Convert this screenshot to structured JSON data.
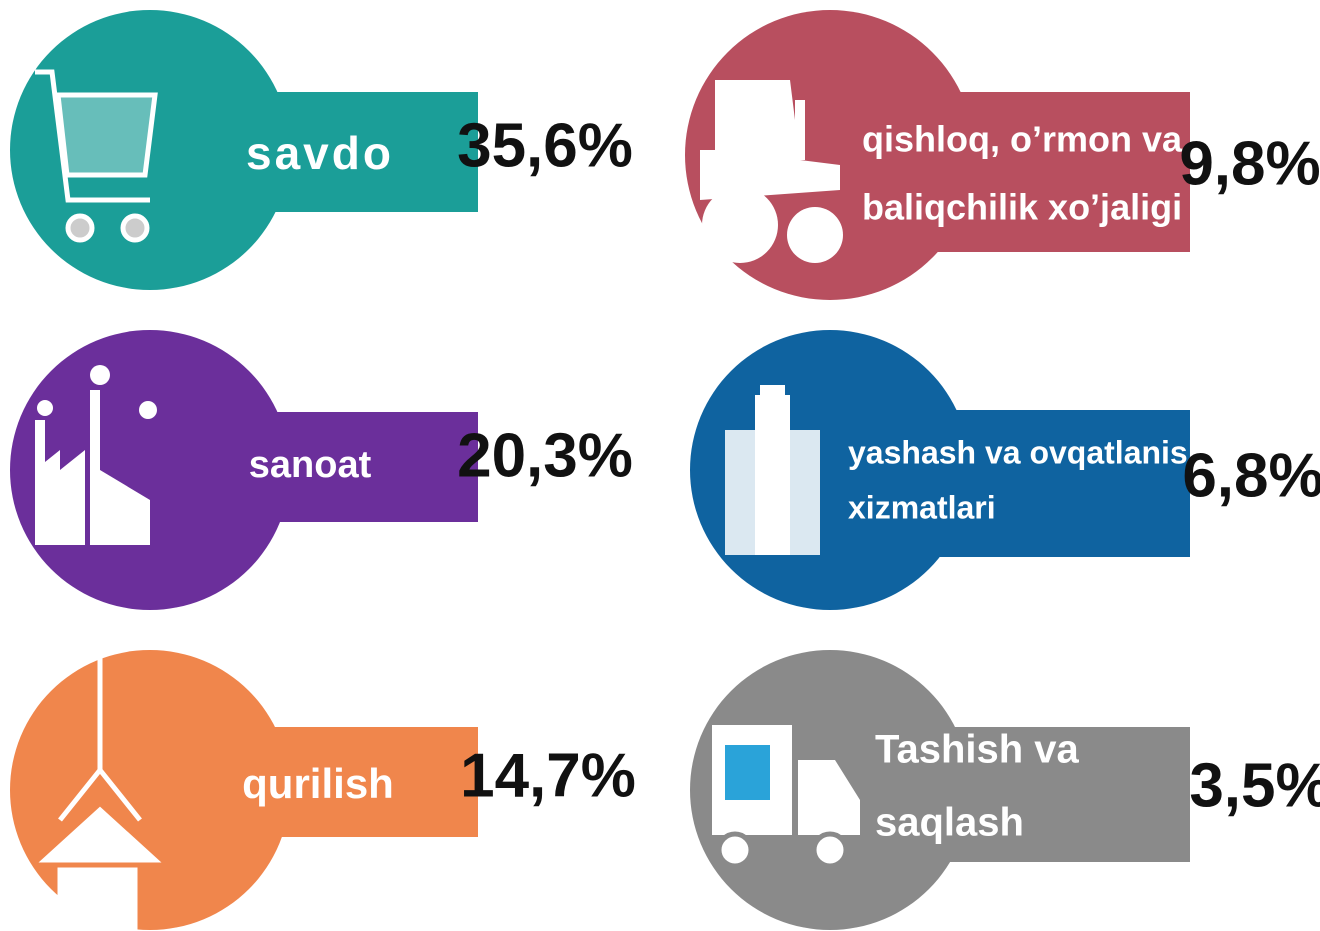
{
  "items": [
    {
      "label": [
        "savdo"
      ],
      "value": "35,6%"
    },
    {
      "label": [
        "sanoat"
      ],
      "value": "20,3%"
    },
    {
      "label": [
        "qurilish"
      ],
      "value": "14,7%"
    },
    {
      "label": [
        "qishloq, o’rmon va",
        "baliqchilik xo’jaligi"
      ],
      "value": "9,8%"
    },
    {
      "label": [
        "yashash va ovqatlanish",
        "xizmatlari"
      ],
      "value": "6,8%"
    },
    {
      "label": [
        "Tashish va",
        "saqlash"
      ],
      "value": "3,5%"
    }
  ]
}
